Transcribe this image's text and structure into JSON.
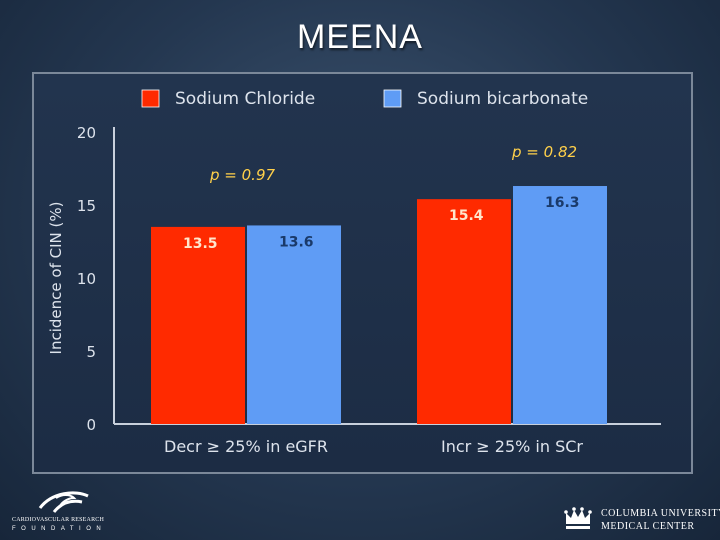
{
  "slide": {
    "title": "MEENA"
  },
  "colors": {
    "red": "#ff2a00",
    "blue": "#5f9cf5",
    "axis": "#c8d0dc",
    "pvalue": "#ffd04a"
  },
  "chart_data": {
    "type": "bar",
    "ylabel": "Incidence of CIN (%)",
    "ylim": [
      0,
      20
    ],
    "yticks": [
      0,
      5,
      10,
      15,
      20
    ],
    "categories": [
      "Decr ≥ 25% in eGFR",
      "Incr ≥ 25% in SCr"
    ],
    "series": [
      {
        "name": "Sodium Chloride",
        "color": "#ff2a00",
        "values": [
          13.5,
          15.4
        ],
        "labels": [
          "13.5",
          "15.4"
        ]
      },
      {
        "name": "Sodium bicarbonate",
        "color": "#5f9cf5",
        "values": [
          13.6,
          16.3
        ],
        "labels": [
          "13.6",
          "16.3"
        ]
      }
    ],
    "legend": "top",
    "annotations": [
      "p = 0.97",
      "p = 0.82"
    ]
  },
  "footer": {
    "left_logo": {
      "line1": "CARDIOVASCULAR RESEARCH",
      "line2": "FOUNDATION",
      "icon": "crf-swirl-icon"
    },
    "right_logo": {
      "line1": "COLUMBIA UNIVERSITY",
      "line2": "MEDICAL CENTER",
      "icon": "crown-icon"
    }
  }
}
